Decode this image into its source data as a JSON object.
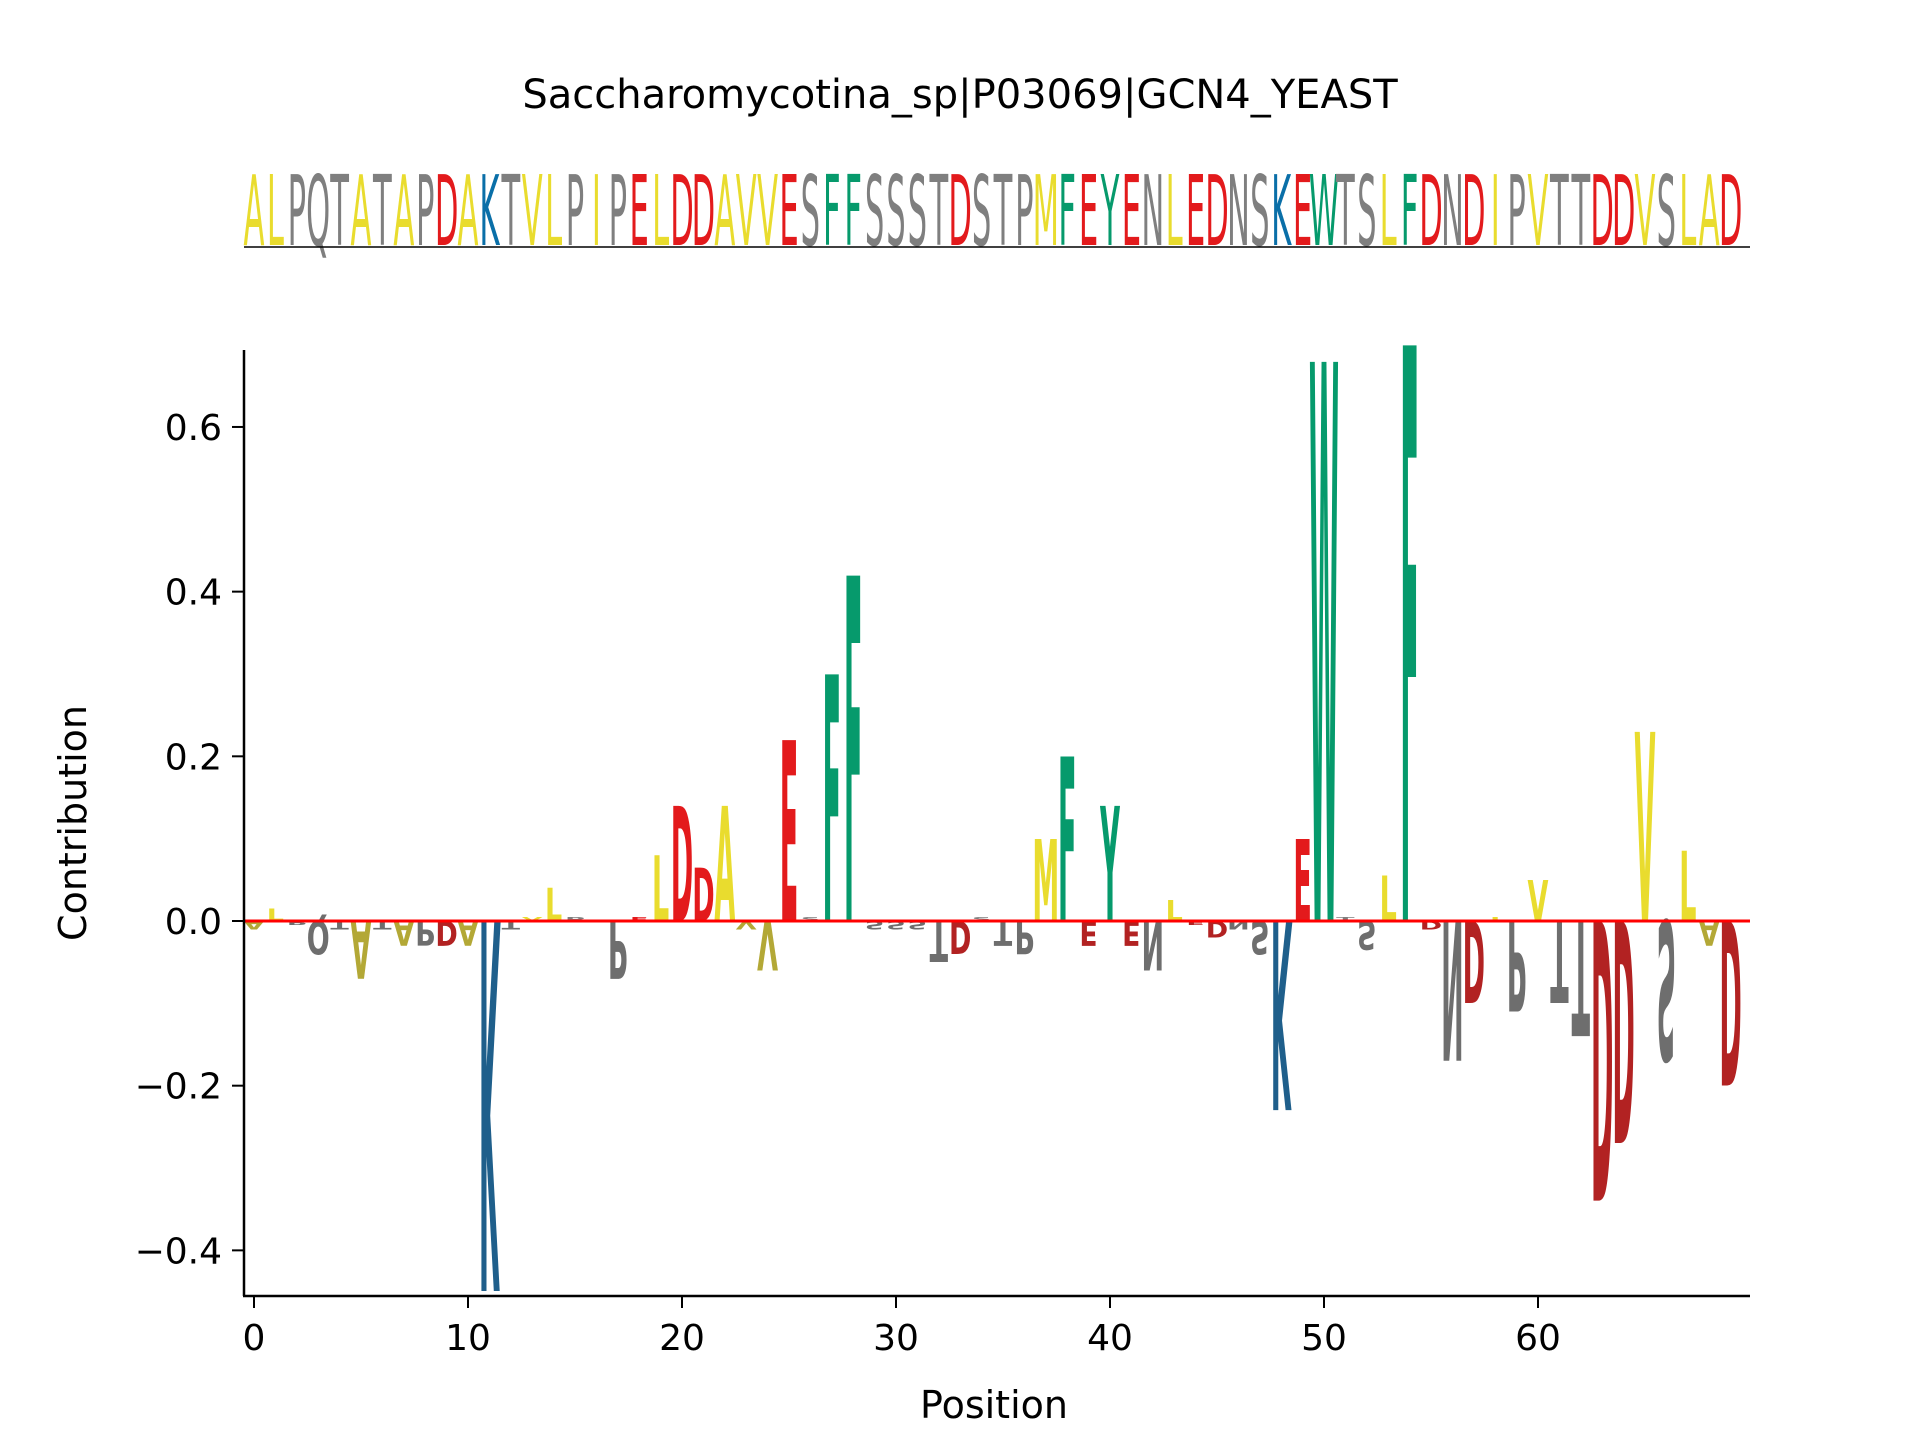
{
  "chart_data": {
    "type": "sequence-logo",
    "title": "Saccharomycotina_sp|P03069|GCN4_YEAST",
    "xlabel": "Position",
    "ylabel": "Contribution",
    "xlim": [
      -0.5,
      69
    ],
    "ylim": [
      -0.45,
      0.7
    ],
    "x_ticks": [
      0,
      10,
      20,
      30,
      40,
      50,
      60
    ],
    "x_tick_labels": [
      "0",
      "10",
      "20",
      "30",
      "40",
      "50",
      "60"
    ],
    "y_ticks": [
      -0.4,
      -0.2,
      0.0,
      0.2,
      0.4,
      0.6
    ],
    "y_tick_labels": [
      "−0.4",
      "−0.2",
      "0.0",
      "0.2",
      "0.4",
      "0.6"
    ],
    "grid": false,
    "sequence": "ALPQTATAPDAKTVLPIPELDDAVVESFFSSSTDSTPMFEYENLEDNSKEWTSLFDNDIPVTTDDVSLAD",
    "contributions": [
      -0.01,
      0.015,
      -0.005,
      -0.04,
      -0.01,
      -0.07,
      -0.01,
      -0.03,
      -0.03,
      -0.03,
      -0.03,
      -0.45,
      -0.01,
      0.005,
      0.04,
      0.005,
      0.0,
      -0.07,
      0.005,
      0.08,
      0.14,
      0.065,
      0.14,
      -0.01,
      -0.06,
      0.22,
      0.005,
      0.3,
      0.42,
      -0.01,
      -0.01,
      -0.01,
      -0.05,
      -0.04,
      0.005,
      -0.03,
      -0.04,
      0.1,
      0.2,
      -0.03,
      0.14,
      -0.03,
      -0.06,
      0.025,
      -0.005,
      -0.02,
      -0.01,
      -0.04,
      -0.23,
      0.1,
      0.68,
      0.005,
      -0.035,
      0.055,
      0.7,
      -0.01,
      -0.17,
      -0.1,
      0.005,
      -0.11,
      0.05,
      -0.1,
      -0.14,
      -0.34,
      -0.27,
      0.23,
      -0.17,
      0.085,
      -0.03,
      -0.2
    ],
    "colors": {
      "hydrophobic": "#e9dc2e",
      "acidic": "#e31a1c",
      "acidic_negative": "#b22222",
      "basic": "#0a6fa8",
      "basic_negative": "#1f5f8b",
      "aromatic": "#069a6c",
      "polar": "#7f7f7f",
      "polar_negative": "#6e6e6e",
      "hydrophobic_negative": "#b3a836",
      "zero_line": "#ff0000",
      "axis": "#000000"
    }
  }
}
